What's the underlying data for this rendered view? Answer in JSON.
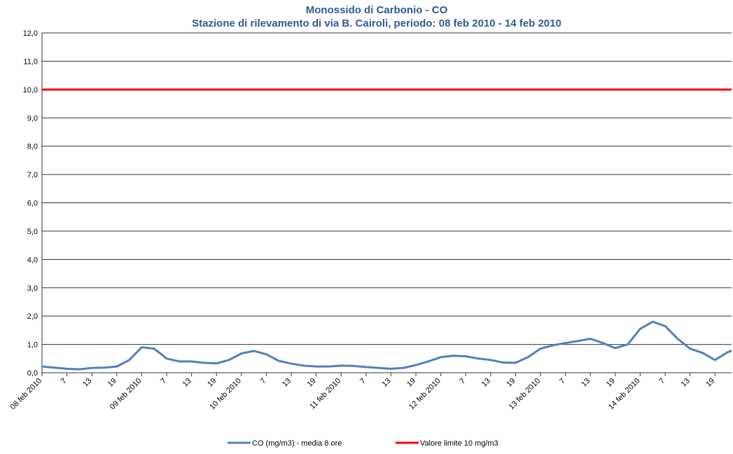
{
  "chart_data": {
    "type": "line",
    "title": "Monossido di Carbonio - CO",
    "subtitle": "Stazione di rilevamento di via B. Cairoli, periodo: 08 feb 2010 - 14 feb 2010",
    "x": [
      0,
      3,
      6,
      9,
      12,
      15,
      18,
      21,
      24,
      27,
      30,
      33,
      36,
      39,
      42,
      45,
      48,
      51,
      54,
      57,
      60,
      63,
      66,
      69,
      72,
      75,
      78,
      81,
      84,
      87,
      90,
      93,
      96,
      99,
      102,
      105,
      108,
      111,
      114,
      117,
      120,
      123,
      126,
      129,
      132,
      135,
      138,
      141,
      144,
      147,
      150,
      153,
      156,
      159,
      162,
      165,
      166
    ],
    "series": [
      {
        "name": "CO (mg/m3) - media 8 ore",
        "color": "#4f81bd",
        "values": [
          0.22,
          0.18,
          0.14,
          0.12,
          0.17,
          0.18,
          0.22,
          0.45,
          0.9,
          0.85,
          0.5,
          0.4,
          0.4,
          0.35,
          0.33,
          0.45,
          0.68,
          0.77,
          0.65,
          0.42,
          0.32,
          0.25,
          0.22,
          0.22,
          0.25,
          0.24,
          0.2,
          0.17,
          0.14,
          0.17,
          0.27,
          0.4,
          0.55,
          0.6,
          0.58,
          0.5,
          0.45,
          0.36,
          0.35,
          0.55,
          0.85,
          0.97,
          1.05,
          1.12,
          1.2,
          1.05,
          0.87,
          1.0,
          1.55,
          1.8,
          1.65,
          1.2,
          0.85,
          0.7,
          0.45,
          0.72,
          0.78
        ]
      }
    ],
    "limit": {
      "name": "Valore limite 10 mg/m3",
      "value": 10,
      "color": "#ff0000"
    },
    "xlim": [
      0,
      166
    ],
    "xticks": [
      {
        "value": 0,
        "label": "08 feb 2010"
      },
      {
        "value": 6,
        "label": "7"
      },
      {
        "value": 12,
        "label": "13"
      },
      {
        "value": 18,
        "label": "19"
      },
      {
        "value": 24,
        "label": "09 feb 2010"
      },
      {
        "value": 30,
        "label": "7"
      },
      {
        "value": 36,
        "label": "13"
      },
      {
        "value": 42,
        "label": "19"
      },
      {
        "value": 48,
        "label": "10 feb 2010"
      },
      {
        "value": 54,
        "label": "7"
      },
      {
        "value": 60,
        "label": "13"
      },
      {
        "value": 66,
        "label": "19"
      },
      {
        "value": 72,
        "label": "11 feb 2010"
      },
      {
        "value": 78,
        "label": "7"
      },
      {
        "value": 84,
        "label": "13"
      },
      {
        "value": 90,
        "label": "19"
      },
      {
        "value": 96,
        "label": "12 feb 2010"
      },
      {
        "value": 102,
        "label": "7"
      },
      {
        "value": 108,
        "label": "13"
      },
      {
        "value": 114,
        "label": "19"
      },
      {
        "value": 120,
        "label": "13 feb 2010"
      },
      {
        "value": 126,
        "label": "7"
      },
      {
        "value": 132,
        "label": "13"
      },
      {
        "value": 138,
        "label": "19"
      },
      {
        "value": 144,
        "label": "14 feb 2010"
      },
      {
        "value": 150,
        "label": "7"
      },
      {
        "value": 156,
        "label": "13"
      },
      {
        "value": 162,
        "label": "19"
      }
    ],
    "ylim": [
      0,
      12
    ],
    "yticks": [
      {
        "value": 0,
        "label": "0,0"
      },
      {
        "value": 1,
        "label": "1,0"
      },
      {
        "value": 2,
        "label": "2,0"
      },
      {
        "value": 3,
        "label": "3,0"
      },
      {
        "value": 4,
        "label": "4,0"
      },
      {
        "value": 5,
        "label": "5,0"
      },
      {
        "value": 6,
        "label": "6,0"
      },
      {
        "value": 7,
        "label": "7,0"
      },
      {
        "value": 8,
        "label": "8,0"
      },
      {
        "value": 9,
        "label": "9,0"
      },
      {
        "value": 10,
        "label": "10,0"
      },
      {
        "value": 11,
        "label": "11,0"
      },
      {
        "value": 12,
        "label": "12,0"
      }
    ],
    "grid": true
  }
}
